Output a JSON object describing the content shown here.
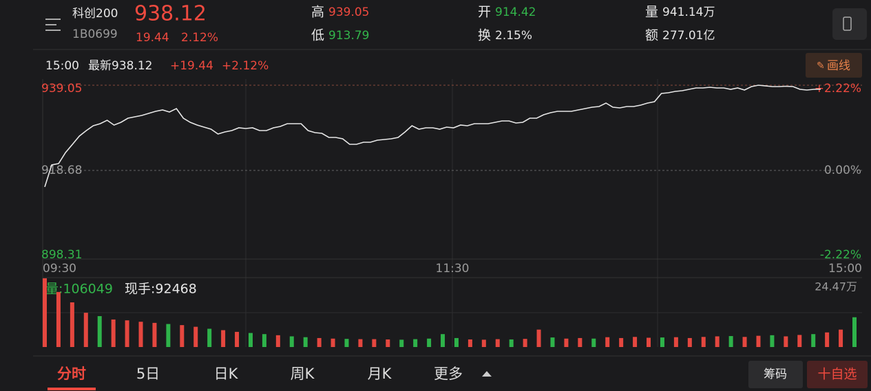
{
  "header": {
    "name": "科创200",
    "code": "1B0699",
    "price": "938.12",
    "change": "19.44",
    "change_pct": "2.12%",
    "high_label": "高",
    "high": "939.05",
    "low_label": "低",
    "low": "913.79",
    "open_label": "开",
    "open": "914.42",
    "turnover_label": "换",
    "turnover": "2.15%",
    "volume_label": "量",
    "volume": "941.14万",
    "amount_label": "额",
    "amount": "277.01亿"
  },
  "info_row": {
    "time": "15:00",
    "latest": "最新938.12",
    "change": "+19.44",
    "change_pct": "+2.12%",
    "draw_button": "画线"
  },
  "price_chart": {
    "type": "line",
    "color": "#e8e8e8",
    "ylim": [
      898.31,
      939.05
    ],
    "yticks": [
      939.05,
      918.68,
      898.31
    ],
    "right_labels": [
      "+2.22%",
      "0.00%",
      "-2.22%"
    ],
    "x_labels": [
      "09:30",
      "11:30",
      "15:00"
    ],
    "values": [
      914.74,
      919.99,
      920.32,
      922.95,
      924.92,
      926.89,
      928.21,
      929.36,
      929.85,
      930.67,
      929.52,
      930.18,
      931.17,
      931.49,
      931.82,
      932.31,
      932.81,
      933.14,
      932.64,
      933.46,
      931.17,
      930.18,
      929.52,
      929.03,
      928.54,
      927.39,
      927.88,
      928.21,
      928.87,
      928.7,
      928.87,
      928.21,
      928.21,
      928.87,
      929.19,
      929.85,
      929.85,
      929.85,
      928.21,
      927.72,
      927.55,
      926.57,
      926.57,
      926.24,
      924.92,
      924.92,
      925.42,
      925.42,
      925.91,
      926.07,
      926.24,
      926.57,
      927.88,
      929.36,
      928.54,
      928.87,
      928.87,
      928.54,
      929.03,
      928.87,
      929.52,
      929.36,
      929.85,
      929.85,
      929.85,
      930.18,
      930.51,
      930.51,
      930.02,
      930.18,
      931.17,
      931.17,
      931.99,
      932.48,
      932.81,
      932.81,
      932.81,
      933.14,
      933.46,
      933.79,
      933.96,
      934.78,
      933.79,
      933.63,
      933.96,
      933.96,
      934.29,
      934.78,
      935.11,
      937.08,
      937.24,
      937.57,
      937.74,
      938.06,
      938.39,
      938.39,
      938.56,
      938.39,
      938.39,
      938.06,
      938.39,
      937.9,
      938.72,
      939.05,
      938.9,
      938.72,
      938.72,
      938.8,
      938.72,
      938.06,
      937.9,
      938.06,
      938.12
    ]
  },
  "volume_chart": {
    "type": "bar",
    "label": "量:106049",
    "hand": "现手:92468",
    "ylim": [
      0,
      24.47
    ],
    "yticks": [
      {
        "value": 24.47,
        "label": "24.47万"
      }
    ],
    "values": [
      24.47,
      19.6,
      15.9,
      12.2,
      11.0,
      9.8,
      9.5,
      9.0,
      8.6,
      8.2,
      7.8,
      7.2,
      6.5,
      6.0,
      5.4,
      5.0,
      4.6,
      4.2,
      3.8,
      3.5,
      3.2,
      3.0,
      2.9,
      2.8,
      2.8,
      2.7,
      2.6,
      2.8,
      3.0,
      4.6,
      3.2,
      2.7,
      2.6,
      2.8,
      2.7,
      2.9,
      6.2,
      3.4,
      3.0,
      3.2,
      3.0,
      3.5,
      3.2,
      3.6,
      3.3,
      3.4,
      3.5,
      3.2,
      3.6,
      3.8,
      3.9,
      3.6,
      4.0,
      4.2,
      3.8,
      4.3,
      4.6,
      5.2,
      6.2,
      10.6
    ],
    "colors": [
      "#e5473f",
      "#e5473f",
      "#e5473f",
      "#e5473f",
      "#2eb34a",
      "#e5473f",
      "#e5473f",
      "#e5473f",
      "#e5473f",
      "#2eb34a",
      "#e5473f",
      "#e5473f",
      "#2eb34a",
      "#e5473f",
      "#e5473f",
      "#2eb34a",
      "#2eb34a",
      "#e5473f",
      "#2eb34a",
      "#2eb34a",
      "#e5473f",
      "#e5473f",
      "#2eb34a",
      "#e5473f",
      "#e5473f",
      "#e5473f",
      "#2eb34a",
      "#2eb34a",
      "#2eb34a",
      "#2eb34a",
      "#2eb34a",
      "#e5473f",
      "#e5473f",
      "#e5473f",
      "#2eb34a",
      "#e5473f",
      "#e5473f",
      "#2eb34a",
      "#e5473f",
      "#e5473f",
      "#2eb34a",
      "#e5473f",
      "#e5473f",
      "#e5473f",
      "#e5473f",
      "#2eb34a",
      "#e5473f",
      "#e5473f",
      "#e5473f",
      "#e5473f",
      "#2eb34a",
      "#e5473f",
      "#e5473f",
      "#2eb34a",
      "#e5473f",
      "#e5473f",
      "#2eb34a",
      "#e5473f",
      "#e5473f",
      "#2eb34a"
    ]
  },
  "tabs": [
    "分时",
    "5日",
    "日K",
    "周K",
    "月K",
    "更多"
  ],
  "buttons": {
    "chips": "筹码",
    "watch": "十自选"
  }
}
